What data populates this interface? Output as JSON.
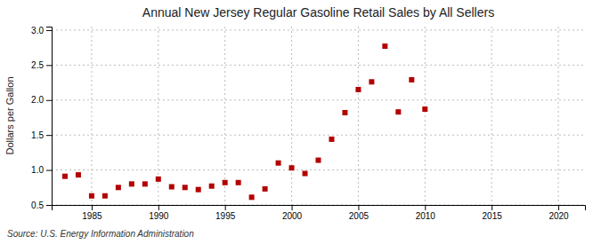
{
  "chart_data": {
    "type": "scatter",
    "title": "Annual New Jersey Regular Gasoline Retail Sales by All Sellers",
    "y_label": "Dollars per Gallon",
    "annotations": [
      "Source: U.S. Energy Information Administration"
    ],
    "x": [
      1983,
      1984,
      1985,
      1986,
      1987,
      1988,
      1989,
      1990,
      1991,
      1992,
      1993,
      1994,
      1995,
      1996,
      1997,
      1998,
      1999,
      2000,
      2001,
      2002,
      2003,
      2004,
      2005,
      2006,
      2007,
      2008,
      2009,
      2010
    ],
    "values": [
      0.91,
      0.93,
      0.63,
      0.63,
      0.75,
      0.8,
      0.8,
      0.87,
      0.76,
      0.75,
      0.72,
      0.77,
      0.82,
      0.82,
      0.61,
      0.73,
      1.1,
      1.03,
      0.95,
      1.14,
      1.44,
      1.82,
      2.15,
      2.26,
      2.77,
      1.83,
      2.29,
      1.87
    ],
    "color": "#b30000",
    "marker": "square",
    "xlim": [
      1982,
      2022
    ],
    "ylim": [
      0.5,
      3.05
    ],
    "xticks": [
      1985,
      1990,
      1995,
      2000,
      2005,
      2010,
      2015,
      2020
    ],
    "yticks": [
      0.5,
      {
        "value": 1.0,
        "label": "1.0"
      },
      1.5,
      {
        "value": 2.0,
        "label": "2.0"
      },
      2.5,
      {
        "value": 3.0,
        "label": "3.0"
      }
    ],
    "grid": true
  }
}
